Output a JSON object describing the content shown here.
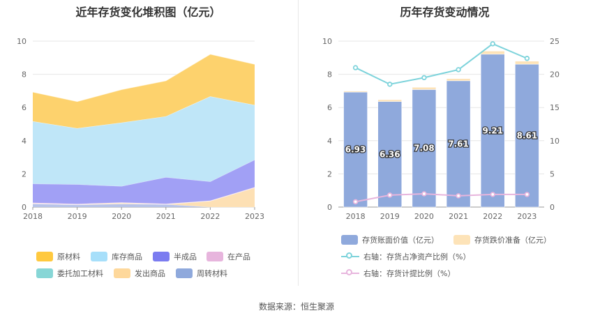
{
  "source": "数据来源：恒生聚源",
  "chart_data": [
    {
      "type": "area",
      "title": "近年存货变化堆积图（亿元）",
      "stacked": true,
      "x": [
        "2018",
        "2019",
        "2020",
        "2021",
        "2022",
        "2023"
      ],
      "ylim": [
        0,
        10
      ],
      "yticks": [
        "0",
        "2",
        "4",
        "6",
        "8",
        "10"
      ],
      "series": [
        {
          "name": "原材料",
          "color": "#fdd26d",
          "values": [
            1.76,
            1.61,
            1.99,
            2.14,
            2.54,
            2.46
          ]
        },
        {
          "name": "库存商品",
          "color": "#bfe6f8",
          "values": [
            3.76,
            3.38,
            3.83,
            3.67,
            5.13,
            3.3
          ]
        },
        {
          "name": "半成品",
          "color": "#a1a0f5",
          "values": [
            1.15,
            1.18,
            0.98,
            1.6,
            1.15,
            1.65
          ]
        },
        {
          "name": "在产品",
          "color": "#f2c6e2",
          "values": [
            0.04,
            0.03,
            0.03,
            0.03,
            0.02,
            0.03
          ]
        },
        {
          "name": "委托加工材料",
          "color": "#7fd6d6",
          "values": [
            0.0,
            0.0,
            0.0,
            0.0,
            0.0,
            0.0
          ]
        },
        {
          "name": "发出商品",
          "color": "#fde0b4",
          "values": [
            0.02,
            0.02,
            0.06,
            0.0,
            0.37,
            1.17
          ]
        },
        {
          "name": "周转材料",
          "color": "#b7c3e9",
          "values": [
            0.2,
            0.14,
            0.19,
            0.17,
            0.0,
            0.0
          ]
        }
      ],
      "legend": [
        {
          "name": "原材料",
          "color": "#ffc93f"
        },
        {
          "name": "库存商品",
          "color": "#a7dffa"
        },
        {
          "name": "半成品",
          "color": "#7b7cf0"
        },
        {
          "name": "在产品",
          "color": "#e7b5dd"
        },
        {
          "name": "委托加工材料",
          "color": "#87d6d6"
        },
        {
          "name": "发出商品",
          "color": "#fed89b"
        },
        {
          "name": "周转材料",
          "color": "#8fa9dc"
        }
      ],
      "legend_position": "bottom"
    },
    {
      "type": "bar",
      "title": "历年存货变动情况",
      "stacked": true,
      "categories": [
        "2018",
        "2019",
        "2020",
        "2021",
        "2022",
        "2023"
      ],
      "ylim": [
        0,
        10
      ],
      "yticks": [
        "0",
        "2",
        "4",
        "6",
        "8",
        "10"
      ],
      "y2lim": [
        0,
        25
      ],
      "y2ticks": [
        "0",
        "5",
        "10",
        "15",
        "20",
        "25"
      ],
      "series": [
        {
          "name": "存货账面价值（亿元）",
          "color": "#8fa9dc",
          "axis": "left",
          "kind": "bar",
          "values": [
            6.93,
            6.36,
            7.08,
            7.61,
            9.21,
            8.61
          ],
          "labels": [
            "6.93",
            "6.36",
            "7.08",
            "7.61",
            "9.21",
            "8.61"
          ]
        },
        {
          "name": "存货跌价准备（亿元）",
          "color": "#fde3b8",
          "axis": "left",
          "kind": "bar",
          "values": [
            0.06,
            0.11,
            0.14,
            0.13,
            0.19,
            0.18
          ]
        },
        {
          "name": "右轴：存货占净资产比例（%）",
          "color": "#7dd3db",
          "axis": "right",
          "kind": "line",
          "values": [
            21.0,
            18.5,
            19.5,
            20.7,
            24.6,
            22.4
          ]
        },
        {
          "name": "右轴：存货计提比例（%）",
          "color": "#e7b5dd",
          "axis": "right",
          "kind": "line",
          "values": [
            0.8,
            1.8,
            2.0,
            1.7,
            1.9,
            1.9
          ]
        }
      ],
      "legend_position": "bottom"
    }
  ]
}
